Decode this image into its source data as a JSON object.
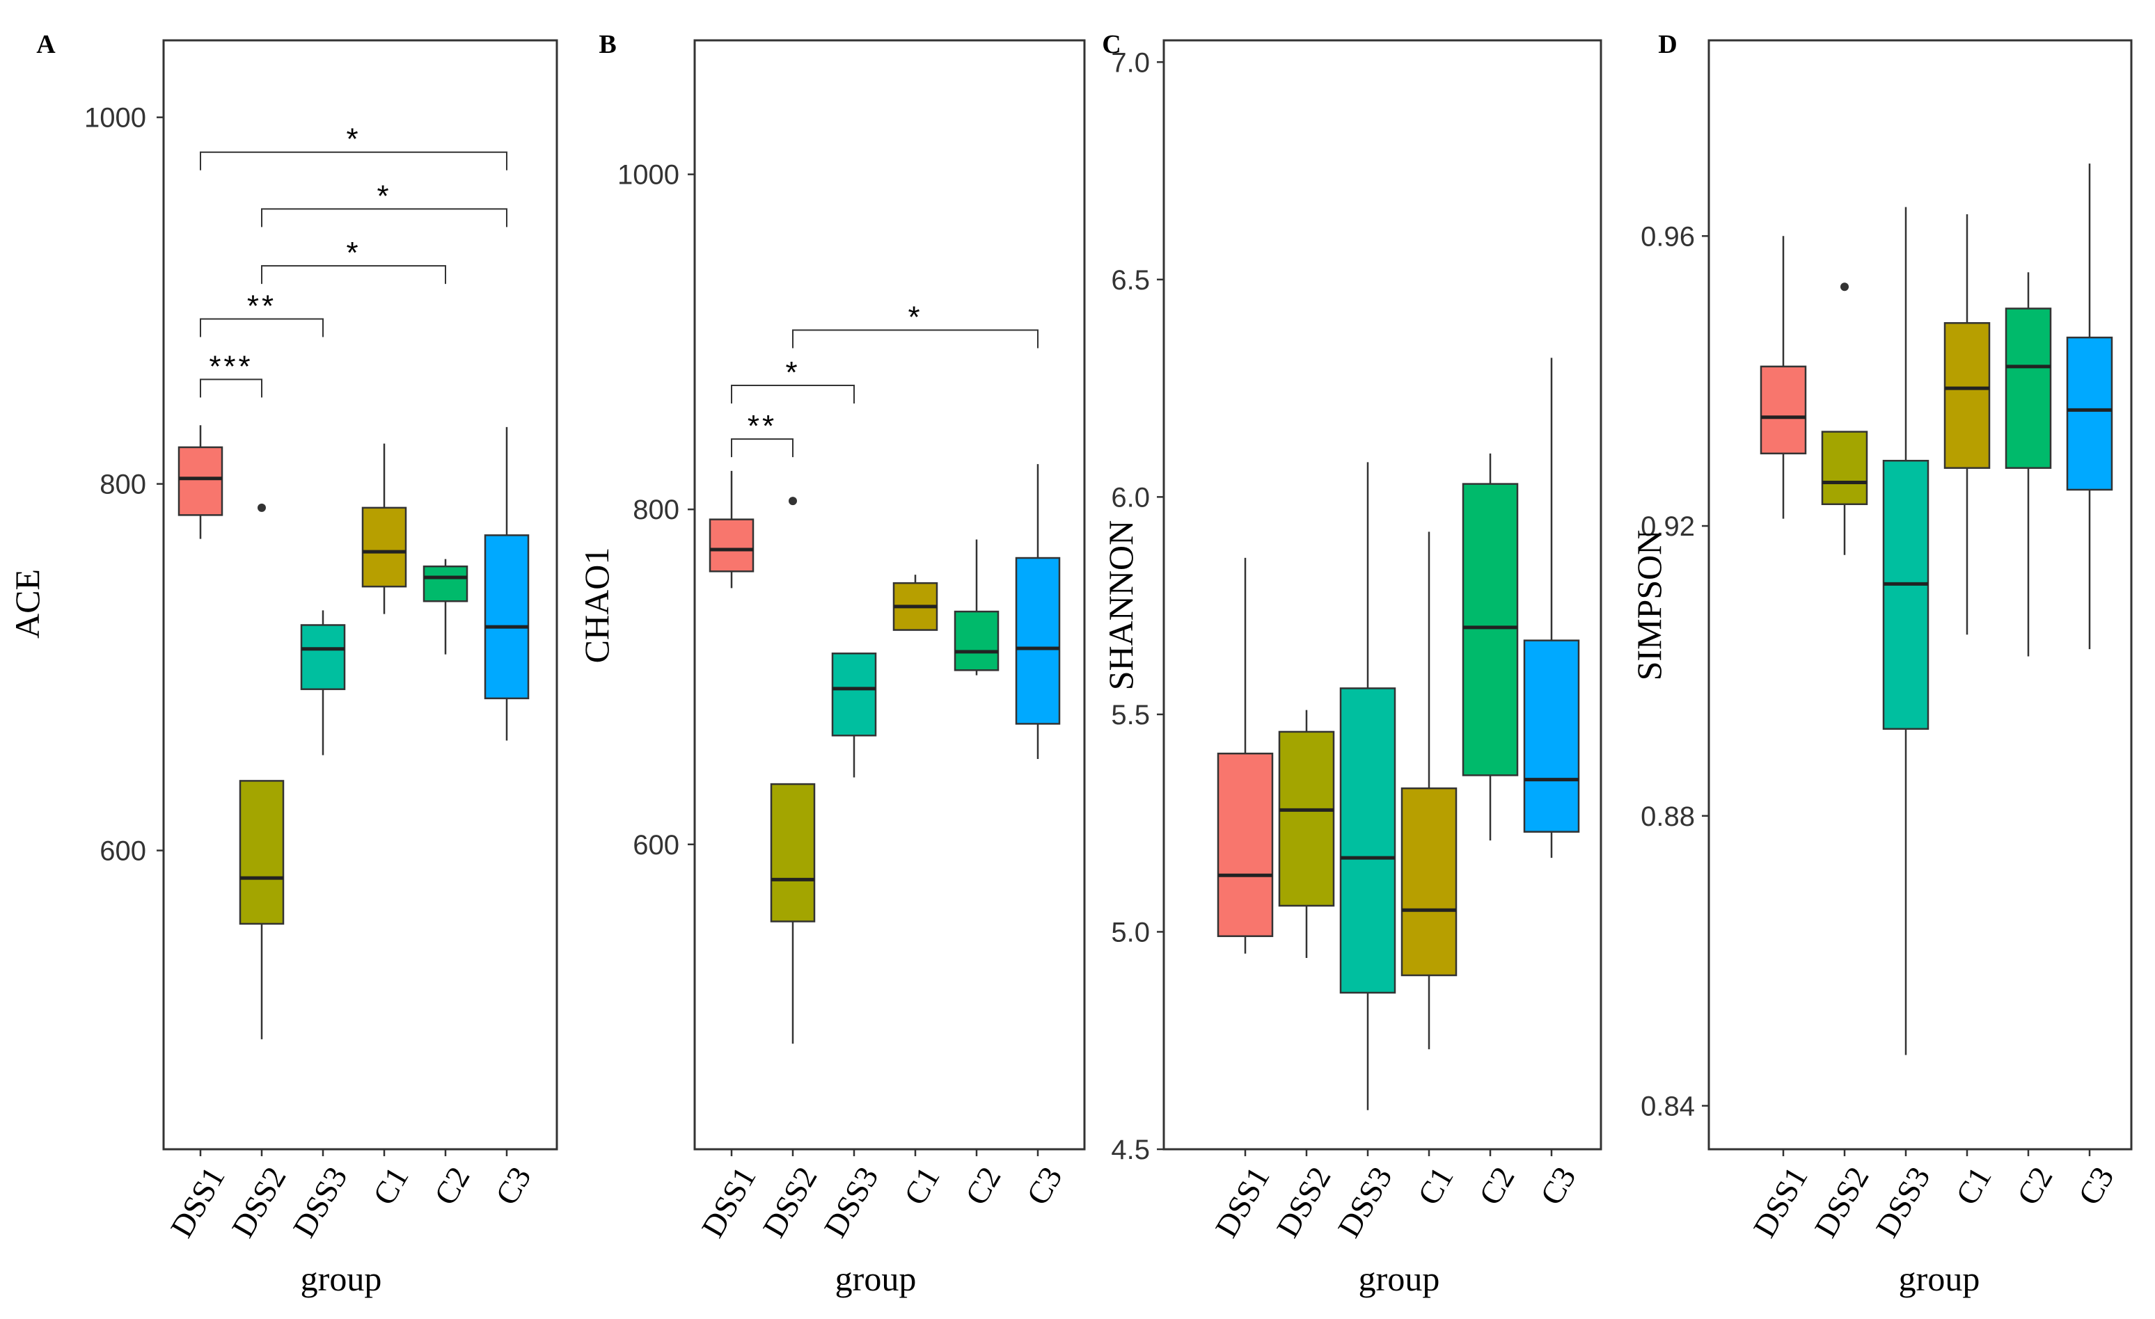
{
  "chart_data": [
    {
      "panel_letter": "A",
      "type": "box",
      "xlabel": "group",
      "ylabel": "ACE",
      "ylim": [
        437,
        1042
      ],
      "yticks": [
        {
          "value": 600,
          "label": "600"
        },
        {
          "value": 800,
          "label": "800"
        },
        {
          "value": 1000,
          "label": "1000"
        }
      ],
      "categories": [
        "DSS1",
        "DSS2",
        "DSS3",
        "C1",
        "C2",
        "C3"
      ],
      "colors": [
        "#F8766D",
        "#A3A500",
        "#00BF9F",
        "#B79F00",
        "#00BA6B",
        "#00A9FF"
      ],
      "boxes": [
        {
          "whisker_low": 770,
          "q1": 783,
          "median": 803,
          "q3": 820,
          "whisker_high": 832,
          "outliers": []
        },
        {
          "whisker_low": 497,
          "q1": 560,
          "median": 585,
          "q3": 638,
          "whisker_high": 638,
          "outliers": [
            787
          ]
        },
        {
          "whisker_low": 652,
          "q1": 688,
          "median": 710,
          "q3": 723,
          "whisker_high": 731,
          "outliers": []
        },
        {
          "whisker_low": 729,
          "q1": 744,
          "median": 763,
          "q3": 787,
          "whisker_high": 822,
          "outliers": []
        },
        {
          "whisker_low": 707,
          "q1": 736,
          "median": 749,
          "q3": 755,
          "whisker_high": 759,
          "outliers": []
        },
        {
          "whisker_low": 660,
          "q1": 683,
          "median": 722,
          "q3": 772,
          "whisker_high": 831,
          "outliers": []
        }
      ],
      "brackets": [
        {
          "from": 0,
          "to": 1,
          "y": 857,
          "label": "***"
        },
        {
          "from": 0,
          "to": 2,
          "y": 890,
          "label": "**"
        },
        {
          "from": 1,
          "to": 4,
          "y": 919,
          "label": "*"
        },
        {
          "from": 1,
          "to": 5,
          "y": 950,
          "label": "*"
        },
        {
          "from": 0,
          "to": 5,
          "y": 981,
          "label": "*"
        }
      ]
    },
    {
      "panel_letter": "B",
      "type": "box",
      "xlabel": "group",
      "ylabel": "CHAO1",
      "ylim": [
        418,
        1080
      ],
      "yticks": [
        {
          "value": 600,
          "label": "600"
        },
        {
          "value": 800,
          "label": "800"
        },
        {
          "value": 1000,
          "label": "1000"
        }
      ],
      "categories": [
        "DSS1",
        "DSS2",
        "DSS3",
        "C1",
        "C2",
        "C3"
      ],
      "colors": [
        "#F8766D",
        "#A3A500",
        "#00BF9F",
        "#B79F00",
        "#00BA6B",
        "#00A9FF"
      ],
      "boxes": [
        {
          "whisker_low": 753,
          "q1": 763,
          "median": 776,
          "q3": 794,
          "whisker_high": 823,
          "outliers": []
        },
        {
          "whisker_low": 481,
          "q1": 554,
          "median": 579,
          "q3": 636,
          "whisker_high": 636,
          "outliers": [
            805
          ]
        },
        {
          "whisker_low": 640,
          "q1": 665,
          "median": 693,
          "q3": 714,
          "whisker_high": 714,
          "outliers": []
        },
        {
          "whisker_low": 728,
          "q1": 728,
          "median": 742,
          "q3": 756,
          "whisker_high": 761,
          "outliers": []
        },
        {
          "whisker_low": 701,
          "q1": 704,
          "median": 715,
          "q3": 739,
          "whisker_high": 782,
          "outliers": []
        },
        {
          "whisker_low": 651,
          "q1": 672,
          "median": 717,
          "q3": 771,
          "whisker_high": 827,
          "outliers": []
        }
      ],
      "brackets": [
        {
          "from": 0,
          "to": 1,
          "y": 842,
          "label": "**"
        },
        {
          "from": 0,
          "to": 2,
          "y": 874,
          "label": "*"
        },
        {
          "from": 1,
          "to": 5,
          "y": 907,
          "label": "*"
        }
      ]
    },
    {
      "panel_letter": "C",
      "type": "box",
      "xlabel": "group",
      "ylabel": "SHANNON",
      "ylim": [
        4.5,
        7.05
      ],
      "yticks": [
        {
          "value": 4.5,
          "label": "4.5"
        },
        {
          "value": 5.0,
          "label": "5.0"
        },
        {
          "value": 5.5,
          "label": "5.5"
        },
        {
          "value": 6.0,
          "label": "6.0"
        },
        {
          "value": 6.5,
          "label": "6.5"
        },
        {
          "value": 7.0,
          "label": "7.0"
        }
      ],
      "categories": [
        "DSS1",
        "DSS2",
        "DSS3",
        "C1",
        "C2",
        "C3"
      ],
      "colors": [
        "#F8766D",
        "#A3A500",
        "#00BF9F",
        "#B79F00",
        "#00BA6B",
        "#00A9FF"
      ],
      "boxes": [
        {
          "whisker_low": 4.95,
          "q1": 4.99,
          "median": 5.13,
          "q3": 5.41,
          "whisker_high": 5.86,
          "outliers": []
        },
        {
          "whisker_low": 4.94,
          "q1": 5.06,
          "median": 5.28,
          "q3": 5.46,
          "whisker_high": 5.51,
          "outliers": []
        },
        {
          "whisker_low": 4.59,
          "q1": 4.86,
          "median": 5.17,
          "q3": 5.56,
          "whisker_high": 6.08,
          "outliers": []
        },
        {
          "whisker_low": 4.73,
          "q1": 4.9,
          "median": 5.05,
          "q3": 5.33,
          "whisker_high": 5.92,
          "outliers": []
        },
        {
          "whisker_low": 5.21,
          "q1": 5.36,
          "median": 5.7,
          "q3": 6.03,
          "whisker_high": 6.1,
          "outliers": []
        },
        {
          "whisker_low": 5.17,
          "q1": 5.23,
          "median": 5.35,
          "q3": 5.67,
          "whisker_high": 6.32,
          "outliers": []
        }
      ],
      "brackets": []
    },
    {
      "panel_letter": "D",
      "type": "box",
      "xlabel": "group",
      "ylabel": "SIMPSON",
      "ylim": [
        0.834,
        0.987
      ],
      "yticks": [
        {
          "value": 0.84,
          "label": "0.84"
        },
        {
          "value": 0.88,
          "label": "0.88"
        },
        {
          "value": 0.92,
          "label": "0.92"
        },
        {
          "value": 0.96,
          "label": "0.96"
        }
      ],
      "categories": [
        "DSS1",
        "DSS2",
        "DSS3",
        "C1",
        "C2",
        "C3"
      ],
      "colors": [
        "#F8766D",
        "#A3A500",
        "#00BF9F",
        "#B79F00",
        "#00BA6B",
        "#00A9FF"
      ],
      "boxes": [
        {
          "whisker_low": 0.921,
          "q1": 0.93,
          "median": 0.935,
          "q3": 0.942,
          "whisker_high": 0.96,
          "outliers": []
        },
        {
          "whisker_low": 0.916,
          "q1": 0.923,
          "median": 0.926,
          "q3": 0.933,
          "whisker_high": 0.933,
          "outliers": [
            0.953
          ]
        },
        {
          "whisker_low": 0.847,
          "q1": 0.892,
          "median": 0.912,
          "q3": 0.929,
          "whisker_high": 0.964,
          "outliers": []
        },
        {
          "whisker_low": 0.905,
          "q1": 0.928,
          "median": 0.939,
          "q3": 0.948,
          "whisker_high": 0.963,
          "outliers": []
        },
        {
          "whisker_low": 0.902,
          "q1": 0.928,
          "median": 0.942,
          "q3": 0.95,
          "whisker_high": 0.955,
          "outliers": []
        },
        {
          "whisker_low": 0.903,
          "q1": 0.925,
          "median": 0.936,
          "q3": 0.946,
          "whisker_high": 0.97,
          "outliers": []
        }
      ],
      "brackets": []
    }
  ]
}
